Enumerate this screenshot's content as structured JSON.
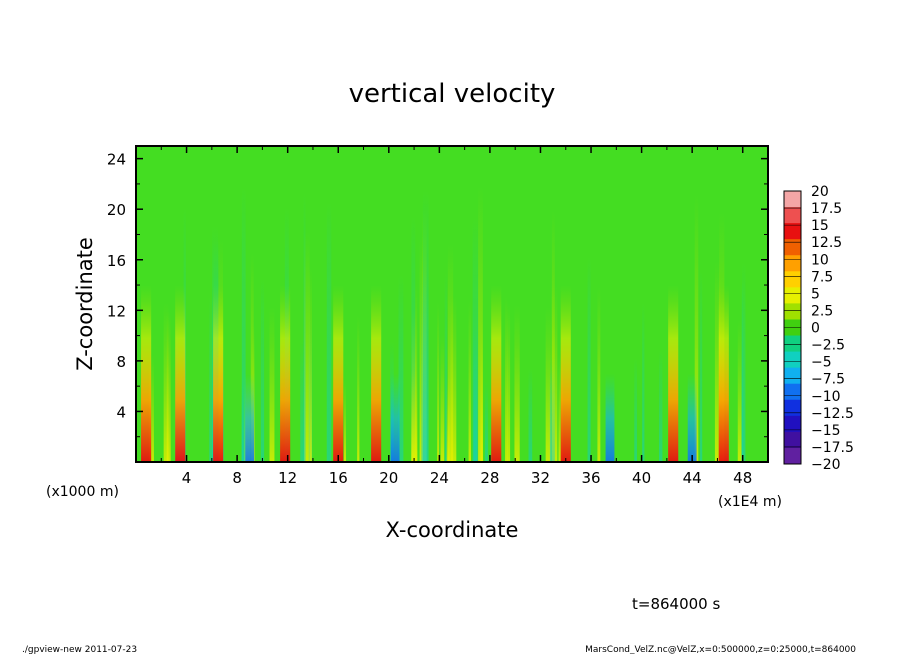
{
  "chart_data": {
    "type": "heatmap",
    "title": "vertical velocity",
    "xlabel": "X-coordinate",
    "ylabel": "Z-coordinate",
    "x_unit_label": "(x1E4 m)",
    "y_unit_label": "(x1000 m)",
    "x_range": [
      0,
      50
    ],
    "y_range": [
      0,
      25
    ],
    "x_ticks": [
      "4",
      "8",
      "12",
      "16",
      "20",
      "24",
      "28",
      "32",
      "36",
      "40",
      "44",
      "48"
    ],
    "y_ticks": [
      "4",
      "8",
      "12",
      "16",
      "20",
      "24"
    ],
    "colorbar_levels": [
      "20",
      "17.5",
      "15",
      "12.5",
      "10",
      "7.5",
      "5",
      "2.5",
      "0",
      "-2.5",
      "-5",
      "-7.5",
      "-10",
      "-12.5",
      "-15",
      "-17.5",
      "-20"
    ],
    "colorbar_colors": [
      "#f4a6a6",
      "#ee5050",
      "#e81010",
      "#f06000",
      "#ffa000",
      "#ffd000",
      "#e6f000",
      "#a0e000",
      "#40d010",
      "#10d080",
      "#10d0c0",
      "#10b0f0",
      "#1070f0",
      "#1030e0",
      "#2010c0",
      "#4010a0",
      "#6020a0"
    ],
    "background_color": "#44dd22",
    "updraft_columns_x": [
      0.8,
      3.5,
      6.5,
      11.8,
      16,
      19,
      28.5,
      34,
      42.5,
      46.5
    ],
    "downdraft_columns_x": [
      3.5,
      9,
      20.5,
      37.5,
      44
    ]
  },
  "time_label": "t=864000 s",
  "footer": {
    "left": "./gpview-new   2011-07-23",
    "right": "MarsCond_VelZ.nc@VelZ,x=0:500000,z=0:25000,t=864000"
  }
}
